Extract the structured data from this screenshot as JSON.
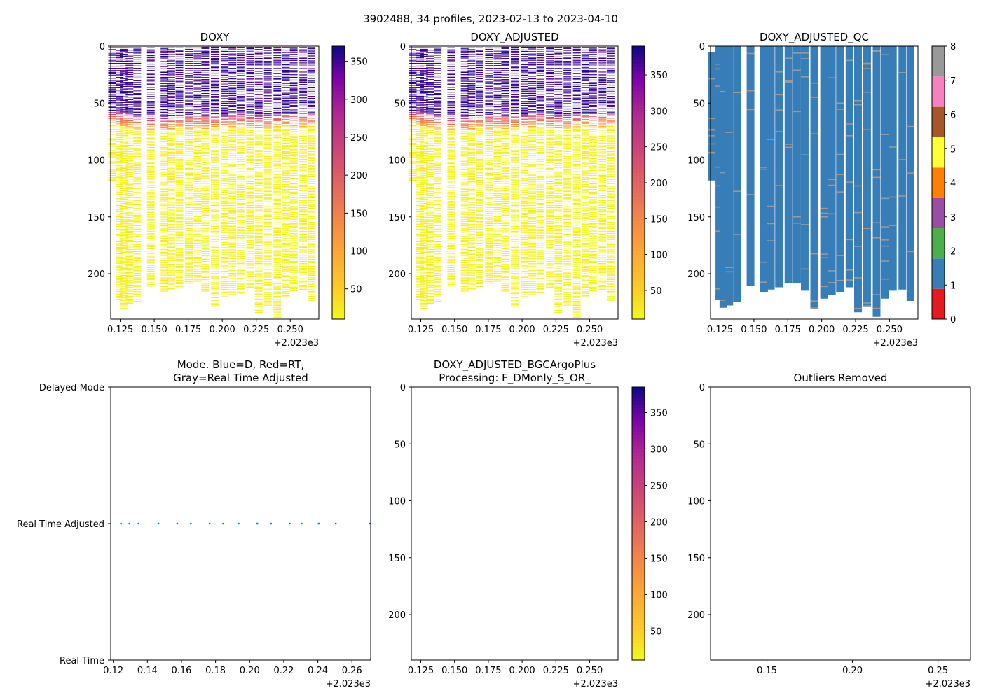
{
  "figure": {
    "suptitle": "3902488, 34 profiles, 2023-02-13 to 2023-04-10",
    "x_offset_label": "+2.023e3"
  },
  "chart_data": [
    {
      "id": "doxy",
      "type": "heatmap",
      "title": "DOXY",
      "xlim": [
        0.118,
        0.271
      ],
      "ylim": [
        240,
        0
      ],
      "xticks": [
        0.125,
        0.15,
        0.175,
        0.2,
        0.225,
        0.25
      ],
      "xtick_labels": [
        "0.125",
        "0.150",
        "0.175",
        "0.200",
        "0.225",
        "0.250"
      ],
      "yticks": [
        0,
        50,
        100,
        150,
        200
      ],
      "ytick_labels": [
        "0",
        "50",
        "100",
        "150",
        "200"
      ],
      "colormap": "plasma_r",
      "colorbar": {
        "range": [
          10,
          370
        ],
        "ticks": [
          50,
          100,
          150,
          200,
          250,
          300,
          350
        ],
        "tick_labels": [
          "50",
          "100",
          "150",
          "200",
          "250",
          "300",
          "350"
        ]
      },
      "profiles": {
        "times": [
          0.119,
          0.1245,
          0.1275,
          0.1318,
          0.1375,
          0.1475,
          0.1575,
          0.1625,
          0.1685,
          0.1755,
          0.1818,
          0.1875,
          0.1945,
          0.2018,
          0.2075,
          0.2135,
          0.2205,
          0.2268,
          0.2335,
          0.2405,
          0.2468,
          0.2525,
          0.2595,
          0.2655
        ],
        "max_depth": [
          118,
          223,
          230,
          228,
          225,
          211,
          216,
          214,
          212,
          208,
          208,
          215,
          230,
          222,
          219,
          216,
          212,
          234,
          228,
          238,
          222,
          215,
          214,
          224
        ],
        "mixed_layer_depth": [
          60,
          61,
          62,
          63,
          64,
          66,
          66,
          65,
          64,
          64,
          63,
          64,
          64,
          64,
          63,
          63,
          63,
          64,
          64,
          63,
          62,
          62,
          62,
          62
        ],
        "surface_value": 365,
        "deep_value": 12
      }
    },
    {
      "id": "doxy-adjusted",
      "type": "heatmap",
      "title": "DOXY_ADJUSTED",
      "xlim": [
        0.118,
        0.271
      ],
      "ylim": [
        240,
        0
      ],
      "xticks": [
        0.125,
        0.15,
        0.175,
        0.2,
        0.225,
        0.25
      ],
      "xtick_labels": [
        "0.125",
        "0.150",
        "0.175",
        "0.200",
        "0.225",
        "0.250"
      ],
      "yticks": [
        0,
        50,
        100,
        150,
        200
      ],
      "ytick_labels": [
        "0",
        "50",
        "100",
        "150",
        "200"
      ],
      "colormap": "plasma_r",
      "colorbar": {
        "range": [
          10,
          390
        ],
        "ticks": [
          50,
          100,
          150,
          200,
          250,
          300,
          350
        ],
        "tick_labels": [
          "50",
          "100",
          "150",
          "200",
          "250",
          "300",
          "350"
        ]
      },
      "profiles": {
        "times": [
          0.119,
          0.1245,
          0.1275,
          0.1318,
          0.1375,
          0.1475,
          0.1575,
          0.1625,
          0.1685,
          0.1755,
          0.1818,
          0.1875,
          0.1945,
          0.2018,
          0.2075,
          0.2135,
          0.2205,
          0.2268,
          0.2335,
          0.2405,
          0.2468,
          0.2525,
          0.2595,
          0.2655
        ],
        "max_depth": [
          118,
          223,
          230,
          228,
          225,
          211,
          216,
          214,
          212,
          208,
          208,
          215,
          230,
          222,
          219,
          216,
          212,
          234,
          228,
          238,
          222,
          215,
          214,
          224
        ],
        "mixed_layer_depth": [
          60,
          61,
          62,
          63,
          64,
          66,
          66,
          65,
          64,
          64,
          63,
          64,
          64,
          64,
          63,
          63,
          63,
          64,
          64,
          63,
          62,
          62,
          62,
          62
        ],
        "surface_value": 385,
        "deep_value": 12
      }
    },
    {
      "id": "doxy-adjusted-qc",
      "type": "heatmap",
      "title": "DOXY_ADJUSTED_QC",
      "xlim": [
        0.118,
        0.271
      ],
      "ylim": [
        240,
        0
      ],
      "xticks": [
        0.125,
        0.15,
        0.175,
        0.2,
        0.225,
        0.25
      ],
      "xtick_labels": [
        "0.125",
        "0.150",
        "0.175",
        "0.200",
        "0.225",
        "0.250"
      ],
      "yticks": [
        0,
        50,
        100,
        150,
        200
      ],
      "ytick_labels": [
        "0",
        "50",
        "100",
        "150",
        "200"
      ],
      "qc_values": {
        "dominant_flag": 1,
        "sparse_flag": 8
      },
      "colorbar": {
        "range": [
          0,
          8
        ],
        "ticks": [
          0,
          1,
          2,
          3,
          4,
          5,
          6,
          7,
          8
        ],
        "tick_labels": [
          "0",
          "1",
          "2",
          "3",
          "4",
          "5",
          "6",
          "7",
          "8"
        ],
        "colors": [
          "#e41a1c",
          "#377eb8",
          "#4daf4a",
          "#984ea3",
          "#ff7f00",
          "#ffff33",
          "#a65628",
          "#f781bf",
          "#999999"
        ]
      },
      "profiles": {
        "times": [
          0.119,
          0.1245,
          0.1275,
          0.1318,
          0.1375,
          0.1475,
          0.1575,
          0.1625,
          0.1685,
          0.1755,
          0.1818,
          0.1875,
          0.1945,
          0.2018,
          0.2075,
          0.2135,
          0.2205,
          0.2268,
          0.2335,
          0.2405,
          0.2468,
          0.2525,
          0.2595,
          0.2655
        ],
        "max_depth": [
          118,
          223,
          230,
          228,
          225,
          211,
          216,
          214,
          212,
          208,
          208,
          215,
          230,
          222,
          219,
          216,
          212,
          234,
          228,
          238,
          222,
          215,
          214,
          224
        ],
        "top_depth": [
          5,
          0,
          0,
          0,
          0,
          0,
          0,
          0,
          0,
          0,
          0,
          0,
          0,
          0,
          0,
          0,
          0,
          0,
          0,
          0,
          0,
          0,
          0,
          0
        ]
      }
    },
    {
      "id": "mode",
      "type": "scatter",
      "title_line1": "Mode. Blue=D, Red=RT,",
      "title_line2": "Gray=Real Time Adjusted",
      "xlim": [
        0.1185,
        0.271
      ],
      "xticks": [
        0.12,
        0.14,
        0.16,
        0.18,
        0.2,
        0.22,
        0.24,
        0.26
      ],
      "xtick_labels": [
        "0.12",
        "0.14",
        "0.16",
        "0.18",
        "0.20",
        "0.22",
        "0.24",
        "0.26"
      ],
      "ylim": [
        0,
        2
      ],
      "yticks": [
        2,
        1,
        0
      ],
      "ytick_labels": [
        "Delayed Mode",
        "Real Time Adjusted",
        "Real Time"
      ],
      "series": [
        {
          "name": "Real Time Adjusted",
          "color": "#1f77b4",
          "x": [
            0.1245,
            0.1295,
            0.1348,
            0.1465,
            0.1575,
            0.1655,
            0.1765,
            0.1845,
            0.1935,
            0.2045,
            0.2125,
            0.2235,
            0.2305,
            0.2405,
            0.2505,
            0.2705
          ],
          "y": [
            1,
            1,
            1,
            1,
            1,
            1,
            1,
            1,
            1,
            1,
            1,
            1,
            1,
            1,
            1,
            1
          ]
        }
      ]
    },
    {
      "id": "bgcargoplus",
      "type": "heatmap",
      "title_line1": "DOXY_ADJUSTED_BGCArgoPlus",
      "title_line2": "Processing: F_DMonly_S_OR_",
      "xlim": [
        0.118,
        0.271
      ],
      "ylim": [
        240,
        0
      ],
      "xticks": [
        0.125,
        0.15,
        0.175,
        0.2,
        0.225,
        0.25
      ],
      "xtick_labels": [
        "0.125",
        "0.150",
        "0.175",
        "0.200",
        "0.225",
        "0.250"
      ],
      "yticks": [
        0,
        50,
        100,
        150,
        200
      ],
      "ytick_labels": [
        "0",
        "50",
        "100",
        "150",
        "200"
      ],
      "colormap": "plasma_r",
      "colorbar": {
        "range": [
          10,
          385
        ],
        "ticks": [
          50,
          100,
          150,
          200,
          250,
          300,
          350
        ],
        "tick_labels": [
          "50",
          "100",
          "150",
          "200",
          "250",
          "300",
          "350"
        ]
      },
      "values": []
    },
    {
      "id": "outliers",
      "type": "scatter",
      "title": "Outliers Removed",
      "xlim": [
        0.117,
        0.269
      ],
      "ylim": [
        240,
        0
      ],
      "xticks": [
        0.15,
        0.2,
        0.25
      ],
      "xtick_labels": [
        "0.15",
        "0.20",
        "0.25"
      ],
      "yticks": [
        0,
        50,
        100,
        150,
        200
      ],
      "ytick_labels": [
        "0",
        "50",
        "100",
        "150",
        "200"
      ],
      "values": []
    }
  ]
}
